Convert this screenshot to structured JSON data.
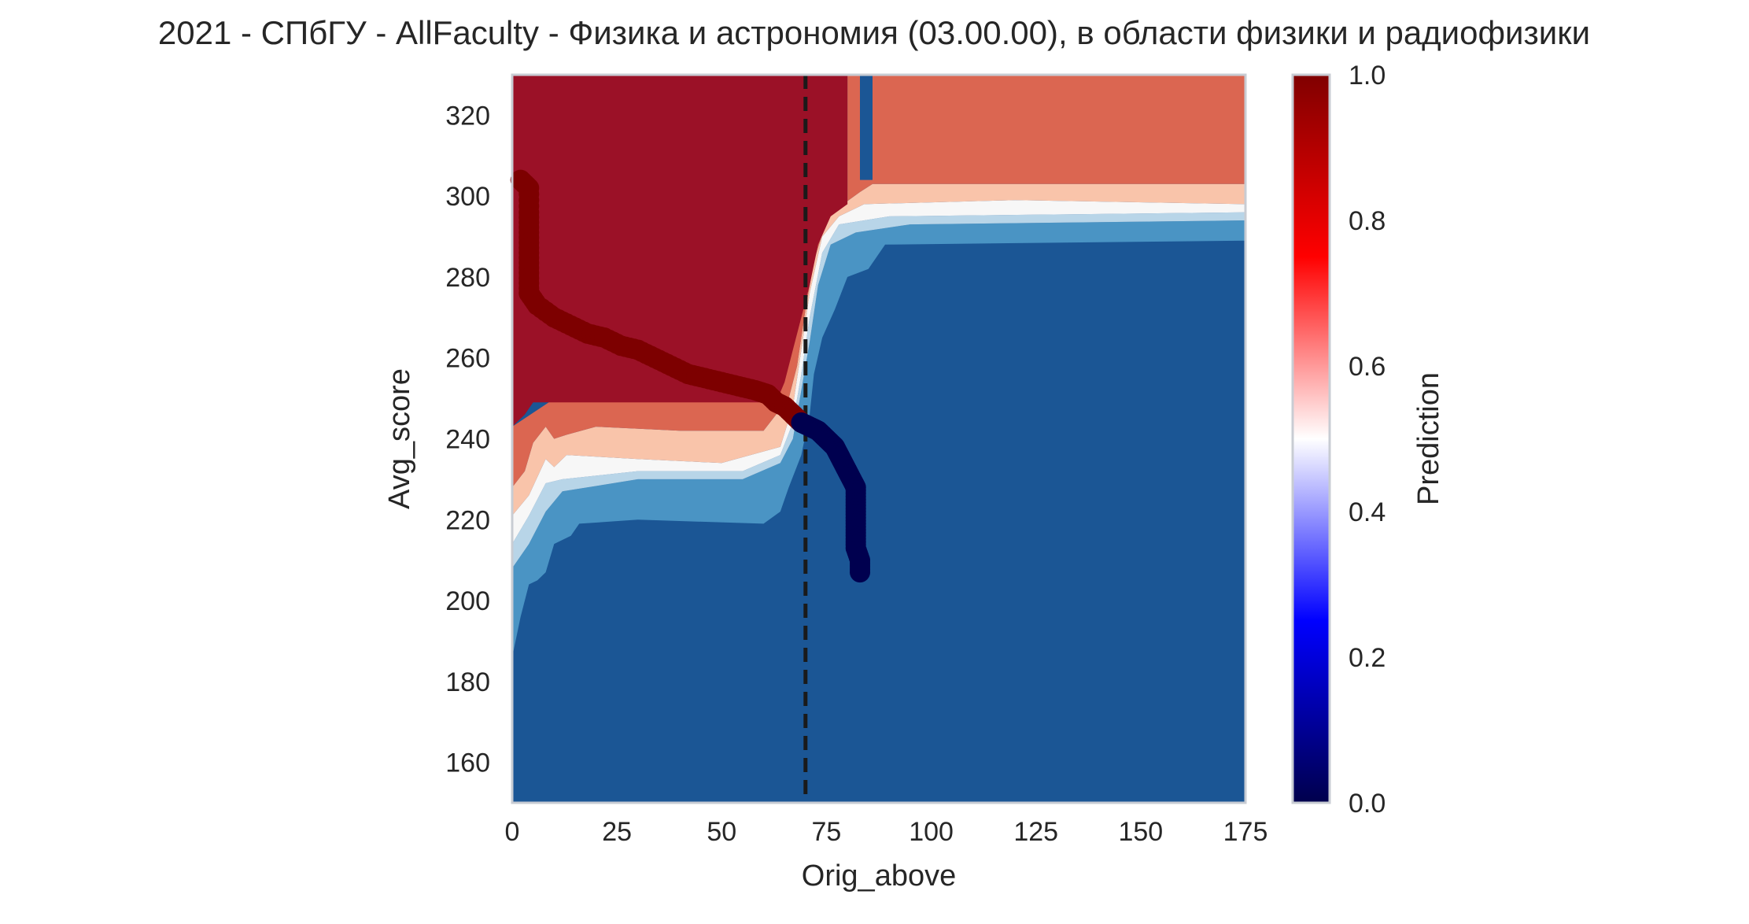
{
  "chart_data": {
    "type": "contour",
    "title": "2021 - СПбГУ - AllFaculty - Физика и астрономия (03.00.00), в области физики и радиофизики",
    "xlabel": "Orig_above",
    "ylabel": "Avg_score",
    "xlim": [
      0,
      175
    ],
    "ylim": [
      150,
      330
    ],
    "x_ticks": [
      "0",
      "25",
      "50",
      "75",
      "100",
      "125",
      "150",
      "175"
    ],
    "y_ticks": [
      "160",
      "180",
      "200",
      "220",
      "240",
      "260",
      "280",
      "300",
      "320"
    ],
    "grid": false,
    "threshold_line": {
      "x": 70,
      "style": "dashed",
      "color": "#1a1a1a"
    },
    "contour_levels": [
      {
        "level": "0.0-0.2",
        "color": "#1b5695"
      },
      {
        "level": "0.2-0.3",
        "color": "#4a94c4"
      },
      {
        "level": "0.3-0.4",
        "color": "#b8d5e8"
      },
      {
        "level": "0.4-0.6",
        "color": "#f7f7f7"
      },
      {
        "level": "0.6-0.7",
        "color": "#f9c4aa"
      },
      {
        "level": "0.7-0.8",
        "color": "#db6651"
      },
      {
        "level": "0.8-1.0",
        "color": "#9b1127"
      }
    ],
    "regions": {
      "deep_red": [
        [
          0,
          330
        ],
        [
          0,
          243
        ],
        [
          3,
          246
        ],
        [
          5,
          249
        ],
        [
          63,
          249
        ],
        [
          65,
          254
        ],
        [
          67,
          262
        ],
        [
          69,
          270
        ],
        [
          71,
          278
        ],
        [
          73,
          288
        ],
        [
          76,
          295
        ],
        [
          80,
          298
        ],
        [
          80,
          330
        ]
      ],
      "mid_red": [
        [
          0,
          243
        ],
        [
          0,
          228
        ],
        [
          3,
          232
        ],
        [
          5,
          239
        ],
        [
          8,
          243
        ],
        [
          10,
          240
        ],
        [
          13,
          241
        ],
        [
          20,
          243
        ],
        [
          40,
          242
        ],
        [
          60,
          242
        ],
        [
          66,
          250
        ],
        [
          68,
          258
        ],
        [
          70,
          272
        ],
        [
          72,
          284
        ],
        [
          75,
          294
        ],
        [
          79,
          298
        ],
        [
          83,
          301
        ],
        [
          86,
          303
        ],
        [
          175,
          303
        ],
        [
          175,
          330
        ],
        [
          86,
          330
        ],
        [
          86,
          304
        ],
        [
          83,
          304
        ],
        [
          83,
          330
        ],
        [
          80,
          330
        ],
        [
          80,
          298
        ]
      ],
      "light_red": [
        [
          0,
          228
        ],
        [
          0,
          221
        ],
        [
          4,
          226
        ],
        [
          8,
          235
        ],
        [
          10,
          233
        ],
        [
          13,
          236
        ],
        [
          30,
          235
        ],
        [
          50,
          234
        ],
        [
          64,
          238
        ],
        [
          67,
          248
        ],
        [
          69,
          262
        ],
        [
          71,
          276
        ],
        [
          74,
          290
        ],
        [
          78,
          295
        ],
        [
          84,
          298
        ],
        [
          120,
          299
        ],
        [
          175,
          298
        ],
        [
          175,
          303
        ],
        [
          86,
          303
        ],
        [
          83,
          301
        ],
        [
          79,
          298
        ],
        [
          75,
          294
        ],
        [
          72,
          284
        ],
        [
          70,
          272
        ],
        [
          68,
          258
        ],
        [
          66,
          250
        ],
        [
          60,
          242
        ],
        [
          40,
          242
        ],
        [
          20,
          243
        ],
        [
          13,
          241
        ],
        [
          10,
          240
        ],
        [
          8,
          243
        ],
        [
          5,
          239
        ],
        [
          3,
          232
        ]
      ],
      "white_band": [
        [
          0,
          221
        ],
        [
          0,
          214
        ],
        [
          4,
          221
        ],
        [
          8,
          229
        ],
        [
          12,
          230
        ],
        [
          30,
          232
        ],
        [
          55,
          232
        ],
        [
          64,
          236
        ],
        [
          67,
          244
        ],
        [
          69,
          256
        ],
        [
          71,
          270
        ],
        [
          74,
          286
        ],
        [
          78,
          293
        ],
        [
          90,
          295
        ],
        [
          175,
          296
        ],
        [
          175,
          298
        ],
        [
          120,
          299
        ],
        [
          84,
          298
        ],
        [
          78,
          295
        ],
        [
          74,
          290
        ],
        [
          71,
          276
        ],
        [
          69,
          262
        ],
        [
          67,
          248
        ],
        [
          64,
          238
        ],
        [
          50,
          234
        ],
        [
          30,
          235
        ],
        [
          13,
          236
        ],
        [
          10,
          233
        ],
        [
          8,
          235
        ],
        [
          4,
          226
        ]
      ],
      "light_blue": [
        [
          0,
          214
        ],
        [
          0,
          208
        ],
        [
          4,
          214
        ],
        [
          8,
          222
        ],
        [
          12,
          227
        ],
        [
          30,
          230
        ],
        [
          55,
          230
        ],
        [
          64,
          234
        ],
        [
          67,
          240
        ],
        [
          69,
          252
        ],
        [
          71,
          264
        ],
        [
          73,
          278
        ],
        [
          76,
          288
        ],
        [
          82,
          291
        ],
        [
          95,
          293
        ],
        [
          175,
          294
        ],
        [
          175,
          296
        ],
        [
          90,
          295
        ],
        [
          78,
          293
        ],
        [
          74,
          286
        ],
        [
          71,
          270
        ],
        [
          69,
          256
        ],
        [
          67,
          244
        ],
        [
          64,
          236
        ],
        [
          55,
          232
        ],
        [
          30,
          232
        ],
        [
          12,
          230
        ],
        [
          8,
          229
        ],
        [
          4,
          221
        ]
      ],
      "mid_blue": [
        [
          0,
          208
        ],
        [
          0,
          186
        ],
        [
          2,
          196
        ],
        [
          4,
          204
        ],
        [
          6,
          205
        ],
        [
          8,
          207
        ],
        [
          10,
          214
        ],
        [
          14,
          216
        ],
        [
          16,
          219
        ],
        [
          30,
          220
        ],
        [
          60,
          219
        ],
        [
          64,
          222
        ],
        [
          66,
          228
        ],
        [
          69,
          236
        ],
        [
          71,
          246
        ],
        [
          72,
          256
        ],
        [
          74,
          265
        ],
        [
          77,
          272
        ],
        [
          80,
          280
        ],
        [
          85,
          282
        ],
        [
          89,
          288
        ],
        [
          175,
          289
        ],
        [
          175,
          294
        ],
        [
          95,
          293
        ],
        [
          82,
          291
        ],
        [
          76,
          288
        ],
        [
          73,
          278
        ],
        [
          71,
          264
        ],
        [
          69,
          252
        ],
        [
          67,
          240
        ],
        [
          64,
          234
        ],
        [
          55,
          230
        ],
        [
          30,
          230
        ],
        [
          12,
          227
        ],
        [
          8,
          222
        ],
        [
          4,
          214
        ]
      ]
    },
    "scatter_series": [
      {
        "color": "#7d0000",
        "points": [
          [
            2,
            304
          ],
          [
            4,
            302
          ],
          [
            4,
            296
          ],
          [
            4,
            291
          ],
          [
            4,
            286
          ],
          [
            4,
            281
          ],
          [
            4,
            276
          ],
          [
            6,
            273
          ],
          [
            10,
            270
          ],
          [
            14,
            268
          ],
          [
            18,
            266
          ],
          [
            22,
            265
          ],
          [
            26,
            263
          ],
          [
            30,
            262
          ],
          [
            34,
            260
          ],
          [
            38,
            258
          ],
          [
            42,
            256
          ],
          [
            46,
            255
          ],
          [
            50,
            254
          ],
          [
            54,
            253
          ],
          [
            58,
            252
          ],
          [
            61,
            251
          ],
          [
            63,
            249
          ],
          [
            65,
            248
          ],
          [
            67,
            246
          ],
          [
            68,
            245
          ],
          [
            69,
            244
          ]
        ]
      },
      {
        "color": "#00004f",
        "points": [
          [
            69,
            244
          ],
          [
            71,
            243
          ],
          [
            73,
            242
          ],
          [
            74,
            241
          ],
          [
            75,
            240
          ],
          [
            76,
            239
          ],
          [
            77,
            238
          ],
          [
            78,
            236
          ],
          [
            79,
            234
          ],
          [
            80,
            232
          ],
          [
            81,
            230
          ],
          [
            82,
            228
          ],
          [
            82,
            225
          ],
          [
            82,
            222
          ],
          [
            82,
            219
          ],
          [
            82,
            216
          ],
          [
            82,
            213
          ],
          [
            83,
            210
          ],
          [
            83,
            207
          ]
        ]
      }
    ],
    "colorbar": {
      "label": "Prediction",
      "min": 0.0,
      "max": 1.0,
      "ticks": [
        "0.0",
        "0.2",
        "0.4",
        "0.6",
        "0.8",
        "1.0"
      ],
      "colormap": "seismic",
      "stops": [
        "#00004c",
        "#0000ff",
        "#ffffff",
        "#ff0000",
        "#800000"
      ]
    }
  }
}
